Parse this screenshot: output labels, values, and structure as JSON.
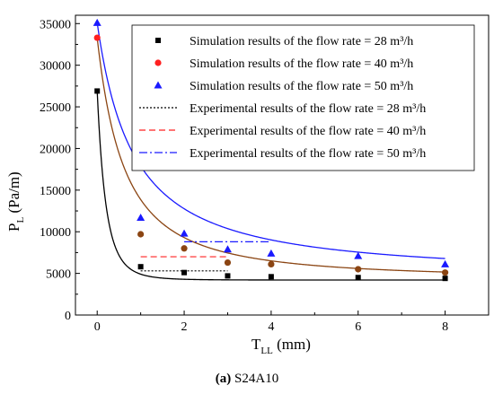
{
  "caption": {
    "label": "(a)",
    "text": " S24A10"
  },
  "chart_data": {
    "type": "scatter",
    "title": "",
    "xlabel": {
      "main": "T",
      "sub": "LL",
      "unit": " (mm)"
    },
    "ylabel": {
      "main": "P",
      "sub": "L",
      "unit": " (Pa/m)"
    },
    "xlim": [
      -0.5,
      9
    ],
    "ylim": [
      0,
      36000
    ],
    "x_ticks": [
      0,
      2,
      4,
      6,
      8
    ],
    "y_ticks": [
      0,
      5000,
      10000,
      15000,
      20000,
      25000,
      30000,
      35000
    ],
    "grid": false,
    "legend_position": "top-right",
    "series": [
      {
        "name": "Simulation results of the flow rate = 28 m³/h",
        "kind": "points",
        "marker": "square",
        "color": "#000000",
        "x": [
          0,
          1,
          2,
          3,
          4,
          6,
          8
        ],
        "y": [
          26900,
          5800,
          5100,
          4700,
          4600,
          4500,
          4400
        ]
      },
      {
        "name": "Simulation results of the flow rate = 40 m³/h",
        "kind": "points",
        "marker": "circle",
        "color": "#ff2020",
        "x": [
          0,
          1,
          2,
          3,
          4,
          6,
          8
        ],
        "y": [
          33300,
          9700,
          8000,
          6300,
          6100,
          5500,
          5100
        ]
      },
      {
        "name": "Simulation results of the flow rate = 50 m³/h",
        "kind": "points",
        "marker": "triangle",
        "color": "#1a1aff",
        "x": [
          0,
          1,
          2,
          3,
          4,
          6,
          8
        ],
        "y": [
          35100,
          11700,
          9800,
          7900,
          7400,
          7100,
          6100
        ]
      },
      {
        "name": "Experimental results of the flow rate = 28 m³/h",
        "kind": "line",
        "dash": "2,2",
        "color": "#000000",
        "x": [
          1,
          3
        ],
        "y": [
          5300,
          5300
        ]
      },
      {
        "name": "Experimental results of the flow rate = 40 m³/h",
        "kind": "line",
        "dash": "7,4",
        "color": "#ff2020",
        "x": [
          1,
          3
        ],
        "y": [
          7000,
          7000
        ]
      },
      {
        "name": "Experimental results of the flow rate = 50 m³/h",
        "kind": "line",
        "dash": "9,3,2,3",
        "color": "#1a1aff",
        "x": [
          2,
          4
        ],
        "y": [
          8800,
          8800
        ]
      }
    ],
    "fits": [
      {
        "color": "#000000",
        "a": 4200,
        "b": 22700,
        "p": 5
      },
      {
        "color": "#8b4513",
        "a": 4300,
        "b": 29000,
        "p": 1.6
      },
      {
        "color": "#1a1aff",
        "a": 4600,
        "b": 30500,
        "p": 1.2
      }
    ]
  }
}
